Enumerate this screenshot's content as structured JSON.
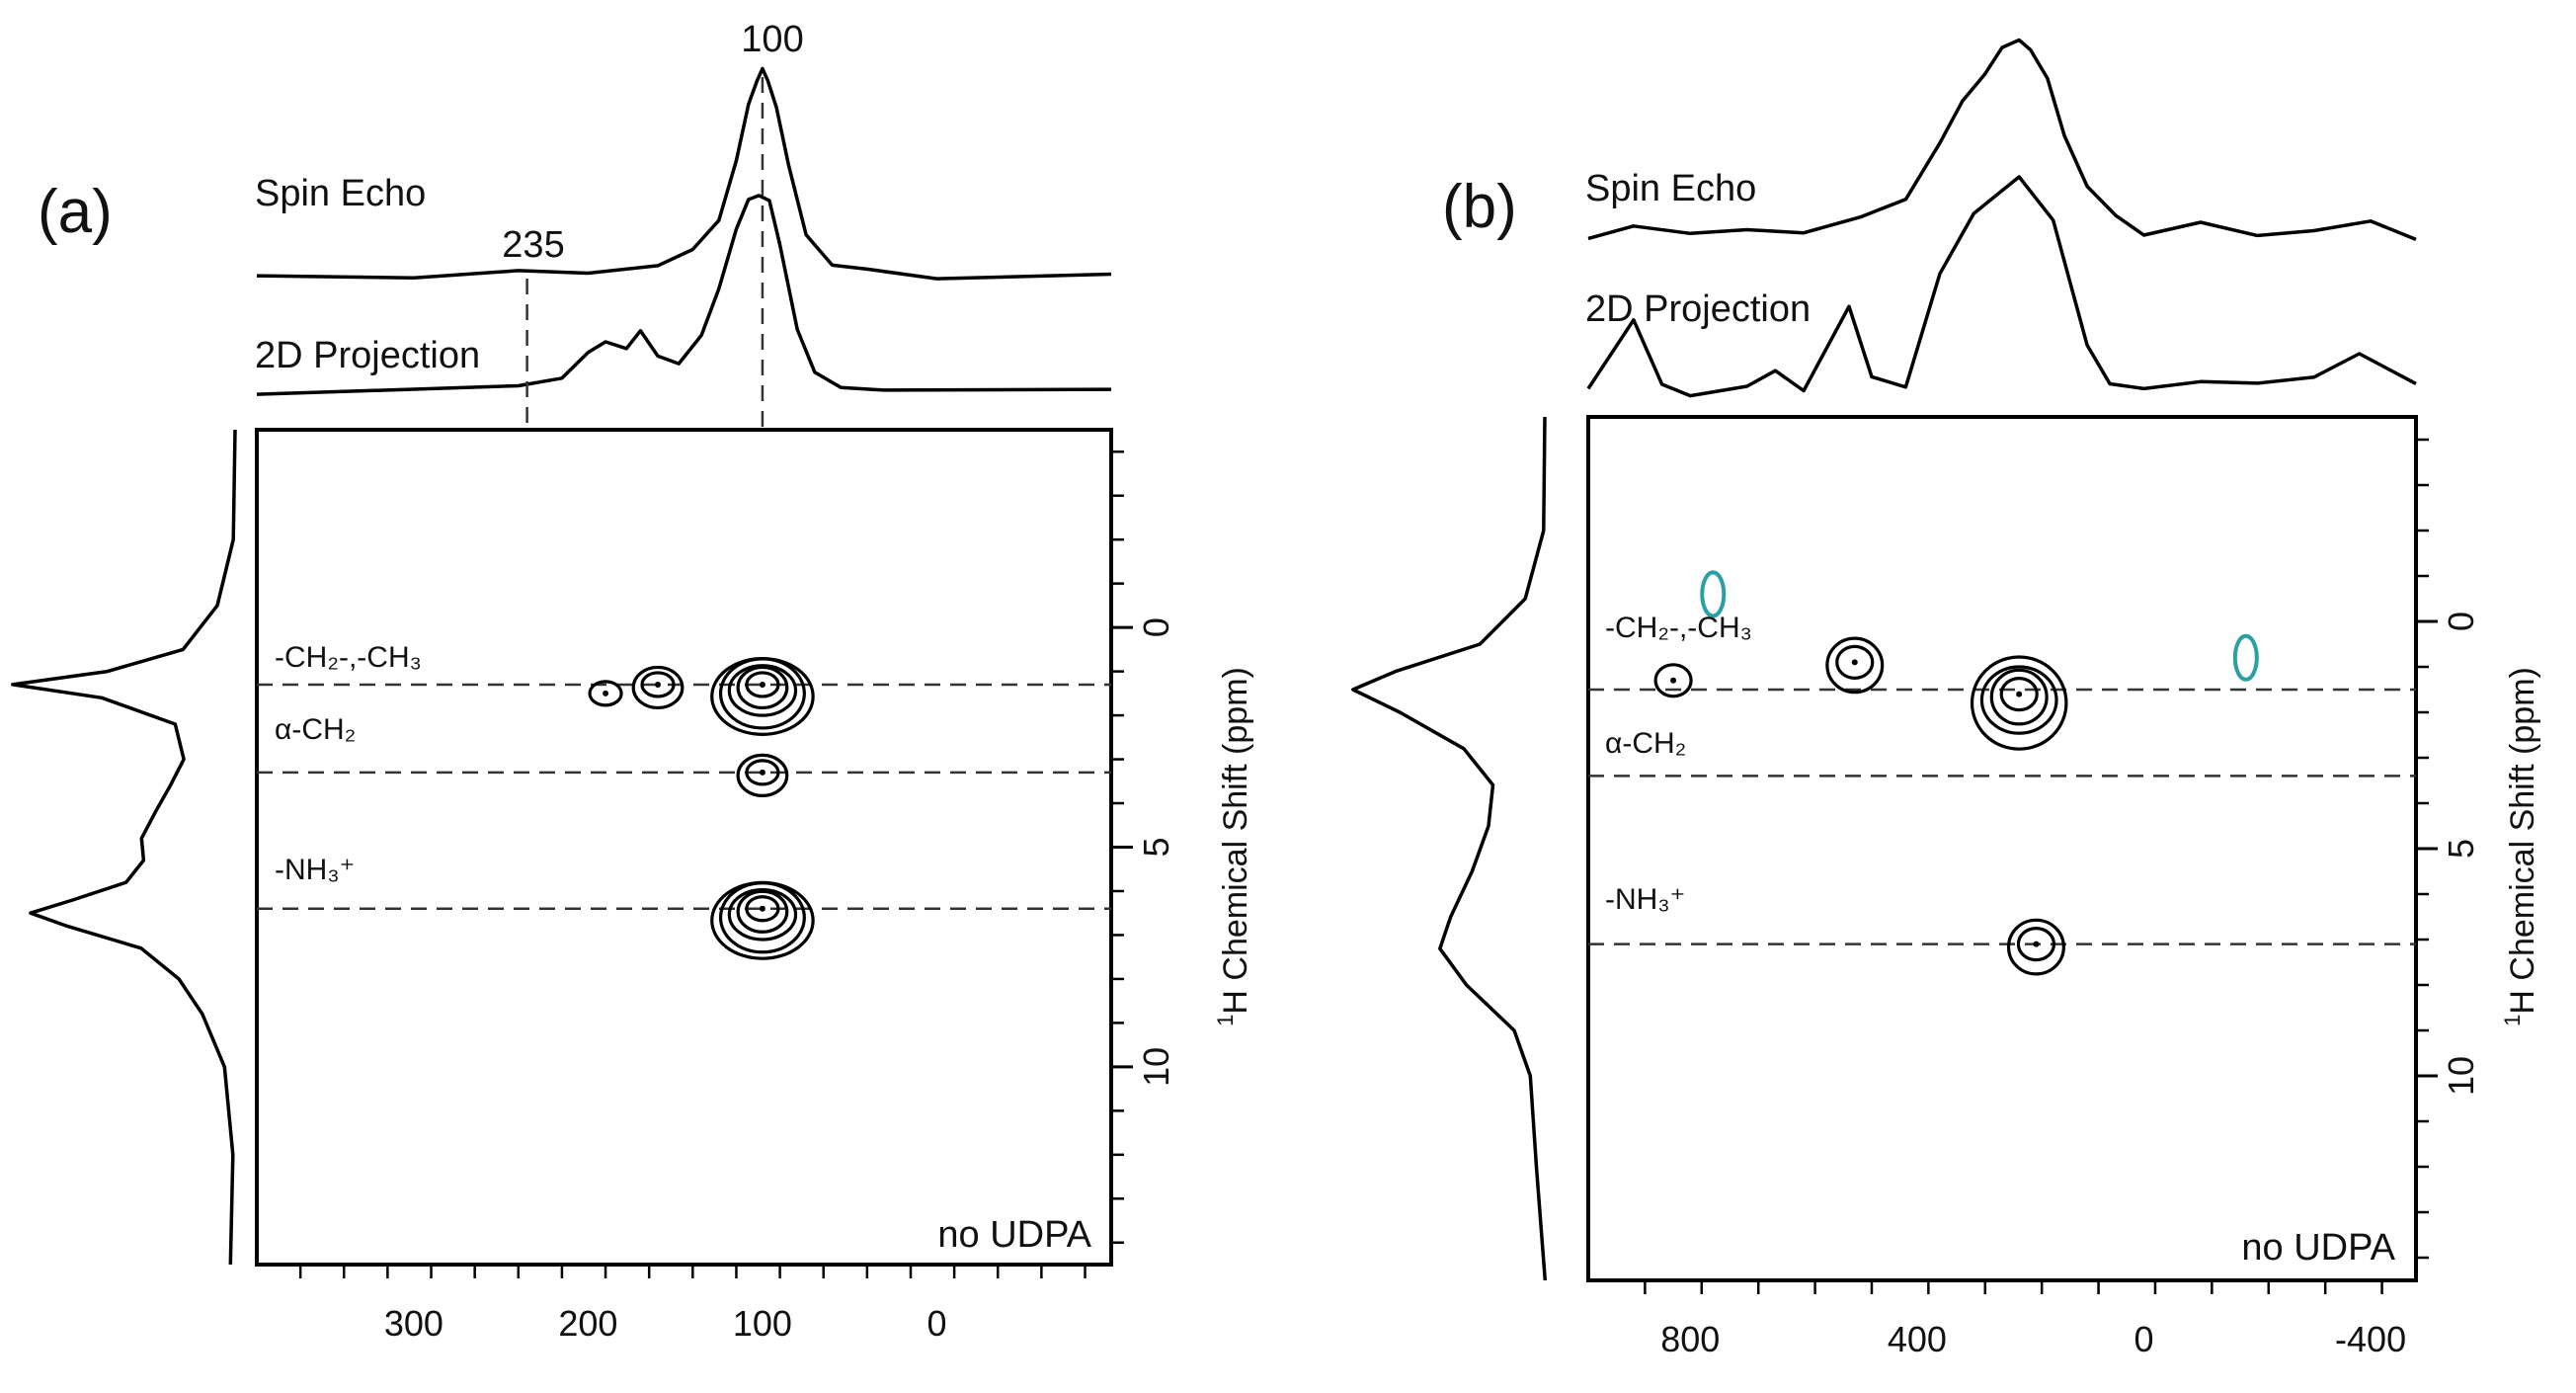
{
  "chart_data": [
    {
      "type": "contour",
      "panel_label": "(a)",
      "x_axis": {
        "xlim": [
          390,
          -100
        ],
        "ticks": [
          300,
          200,
          100,
          0
        ],
        "tick_labels": [
          "300",
          "200",
          "100",
          "0"
        ]
      },
      "y_axis": {
        "title_prefix": "1",
        "title": "H Chemical Shift (ppm)",
        "ylim": [
          -4.5,
          14.5
        ],
        "ticks": [
          0,
          5,
          10
        ],
        "tick_labels": [
          "0",
          "5",
          "10"
        ]
      },
      "top_traces": [
        {
          "name": "Spin Echo",
          "label": "Spin Echo",
          "peak_label": "100",
          "peak_x": 100,
          "points": [
            [
              390,
              0.05
            ],
            [
              300,
              0.05
            ],
            [
              240,
              0.06
            ],
            [
              200,
              0.07
            ],
            [
              160,
              0.1
            ],
            [
              140,
              0.16
            ],
            [
              125,
              0.32
            ],
            [
              115,
              0.58
            ],
            [
              108,
              0.84
            ],
            [
              103,
              0.97
            ],
            [
              100,
              1.0
            ],
            [
              97,
              0.96
            ],
            [
              92,
              0.84
            ],
            [
              85,
              0.55
            ],
            [
              75,
              0.25
            ],
            [
              60,
              0.1
            ],
            [
              40,
              0.07
            ],
            [
              0,
              0.05
            ],
            [
              -100,
              0.05
            ]
          ]
        },
        {
          "name": "2D Projection",
          "label": "2D Projection",
          "marker_label": "235",
          "marker_x": 235,
          "points": [
            [
              390,
              0.04
            ],
            [
              300,
              0.05
            ],
            [
              240,
              0.06
            ],
            [
              215,
              0.12
            ],
            [
              200,
              0.22
            ],
            [
              190,
              0.28
            ],
            [
              178,
              0.26
            ],
            [
              170,
              0.32
            ],
            [
              160,
              0.22
            ],
            [
              148,
              0.18
            ],
            [
              135,
              0.3
            ],
            [
              125,
              0.55
            ],
            [
              115,
              0.82
            ],
            [
              108,
              0.96
            ],
            [
              102,
              1.0
            ],
            [
              96,
              0.95
            ],
            [
              90,
              0.75
            ],
            [
              80,
              0.35
            ],
            [
              70,
              0.12
            ],
            [
              55,
              0.07
            ],
            [
              30,
              0.05
            ],
            [
              -100,
              0.04
            ]
          ]
        }
      ],
      "side_trace": {
        "name": "1H projection",
        "points": [
          [
            -4.5,
            0.03
          ],
          [
            -2,
            0.05
          ],
          [
            -0.5,
            0.1
          ],
          [
            0.5,
            0.25
          ],
          [
            1.0,
            0.6
          ],
          [
            1.3,
            1.0
          ],
          [
            1.6,
            0.6
          ],
          [
            2.2,
            0.3
          ],
          [
            3.0,
            0.26
          ],
          [
            3.6,
            0.3
          ],
          [
            4.2,
            0.38
          ],
          [
            4.8,
            0.45
          ],
          [
            5.3,
            0.42
          ],
          [
            5.8,
            0.5
          ],
          [
            6.2,
            0.75
          ],
          [
            6.5,
            0.92
          ],
          [
            6.8,
            0.75
          ],
          [
            7.3,
            0.45
          ],
          [
            8.0,
            0.28
          ],
          [
            8.8,
            0.16
          ],
          [
            10,
            0.08
          ],
          [
            12,
            0.05
          ],
          [
            14.5,
            0.04
          ]
        ]
      },
      "guide_lines": [
        {
          "label": "-CH₂-,-CH₃",
          "ppm": 1.3
        },
        {
          "label": "α-CH₂",
          "ppm": 3.3
        },
        {
          "label": "-NH₃⁺",
          "ppm": 6.4
        }
      ],
      "contour_peaks": [
        {
          "x": 100,
          "y": 1.3,
          "levels": 5
        },
        {
          "x": 100,
          "y": 3.3,
          "levels": 2
        },
        {
          "x": 160,
          "y": 1.3,
          "levels": 2
        },
        {
          "x": 190,
          "y": 1.5,
          "levels": 1
        },
        {
          "x": 100,
          "y": 6.4,
          "levels": 5
        }
      ],
      "corner_note": "no UDPA"
    },
    {
      "type": "contour",
      "panel_label": "(b)",
      "x_axis": {
        "xlim": [
          980,
          -480
        ],
        "ticks": [
          800,
          400,
          0,
          -400
        ],
        "tick_labels": [
          "800",
          "400",
          "0",
          "-400"
        ]
      },
      "y_axis": {
        "title_prefix": "1",
        "title": "H Chemical Shift (ppm)",
        "ylim": [
          -4.5,
          14.5
        ],
        "ticks": [
          0,
          5,
          10
        ],
        "tick_labels": [
          "0",
          "5",
          "10"
        ]
      },
      "top_traces": [
        {
          "name": "Spin Echo",
          "label": "Spin Echo",
          "points": [
            [
              980,
              0.05
            ],
            [
              900,
              0.12
            ],
            [
              800,
              0.06
            ],
            [
              700,
              0.1
            ],
            [
              600,
              0.08
            ],
            [
              500,
              0.14
            ],
            [
              420,
              0.25
            ],
            [
              360,
              0.5
            ],
            [
              320,
              0.7
            ],
            [
              280,
              0.85
            ],
            [
              250,
              0.95
            ],
            [
              220,
              1.0
            ],
            [
              200,
              0.96
            ],
            [
              170,
              0.8
            ],
            [
              140,
              0.55
            ],
            [
              100,
              0.3
            ],
            [
              50,
              0.15
            ],
            [
              0,
              0.08
            ],
            [
              -100,
              0.12
            ],
            [
              -200,
              0.06
            ],
            [
              -300,
              0.1
            ],
            [
              -400,
              0.12
            ],
            [
              -480,
              0.05
            ]
          ]
        },
        {
          "name": "2D Projection",
          "label": "2D Projection",
          "points": [
            [
              980,
              0.05
            ],
            [
              900,
              0.35
            ],
            [
              850,
              0.05
            ],
            [
              800,
              0.02
            ],
            [
              700,
              0.04
            ],
            [
              650,
              0.12
            ],
            [
              600,
              0.04
            ],
            [
              520,
              0.4
            ],
            [
              480,
              0.1
            ],
            [
              420,
              0.05
            ],
            [
              360,
              0.55
            ],
            [
              300,
              0.85
            ],
            [
              220,
              1.0
            ],
            [
              160,
              0.8
            ],
            [
              100,
              0.25
            ],
            [
              60,
              0.05
            ],
            [
              0,
              0.04
            ],
            [
              -100,
              0.08
            ],
            [
              -200,
              0.05
            ],
            [
              -300,
              0.1
            ],
            [
              -380,
              0.2
            ],
            [
              -480,
              0.05
            ]
          ]
        }
      ],
      "side_trace": {
        "name": "1H projection",
        "points": [
          [
            -4.5,
            0.03
          ],
          [
            -2,
            0.05
          ],
          [
            -0.5,
            0.12
          ],
          [
            0.5,
            0.35
          ],
          [
            1.1,
            0.8
          ],
          [
            1.5,
            1.0
          ],
          [
            2.0,
            0.75
          ],
          [
            2.8,
            0.45
          ],
          [
            3.6,
            0.3
          ],
          [
            4.5,
            0.3
          ],
          [
            5.5,
            0.4
          ],
          [
            6.5,
            0.52
          ],
          [
            7.2,
            0.55
          ],
          [
            8.0,
            0.42
          ],
          [
            9.0,
            0.2
          ],
          [
            10,
            0.1
          ],
          [
            12,
            0.06
          ],
          [
            14.5,
            0.04
          ]
        ]
      },
      "guide_lines": [
        {
          "label": "-CH₂-,-CH₃",
          "ppm": 1.5
        },
        {
          "label": "α-CH₂",
          "ppm": 3.4
        },
        {
          "label": "-NH₃⁺",
          "ppm": 7.1
        }
      ],
      "contour_peaks": [
        {
          "x": 220,
          "y": 1.6,
          "levels": 4
        },
        {
          "x": 510,
          "y": 0.9,
          "levels": 2
        },
        {
          "x": 830,
          "y": 1.3,
          "levels": 1
        },
        {
          "x": 190,
          "y": 7.1,
          "levels": 2
        }
      ],
      "negative_contours": [
        {
          "x": -180,
          "y": 0.8
        },
        {
          "x": 760,
          "y": -0.6
        }
      ],
      "corner_note": "no UDPA"
    }
  ]
}
